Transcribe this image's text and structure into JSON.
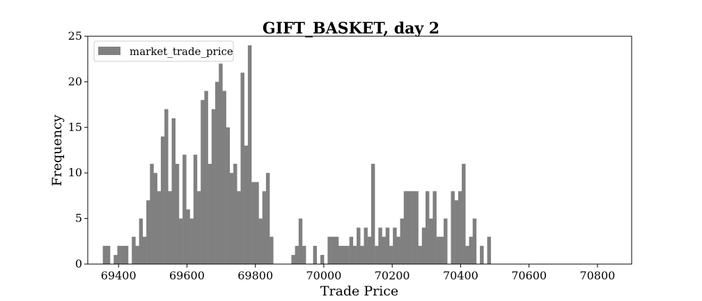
{
  "chart_data": {
    "type": "bar",
    "title": "GIFT_BASKET, day 2",
    "xlabel": "Trade Price",
    "ylabel": "Frequency",
    "xlim": [
      69310,
      70900
    ],
    "ylim": [
      0,
      25
    ],
    "xticks": [
      69400,
      69600,
      69800,
      70000,
      70200,
      70400,
      70600,
      70800
    ],
    "yticks": [
      0,
      5,
      10,
      15,
      20,
      25
    ],
    "grid": false,
    "legend_position": "top-left",
    "series": [
      {
        "name": "market_trade_price",
        "color": "#808080",
        "bin_start": 69354,
        "bin_width": 10.6,
        "counts": [
          2,
          2,
          0,
          1,
          2,
          2,
          2,
          0,
          3,
          2,
          5,
          3,
          7,
          11,
          10,
          8,
          14,
          17,
          8,
          16,
          11,
          5,
          12,
          6,
          5,
          12,
          8,
          18,
          19,
          11,
          17,
          20,
          22,
          19,
          15,
          10,
          11,
          8,
          21,
          13,
          24,
          9,
          9,
          5,
          8,
          10,
          3,
          0,
          0,
          0,
          0,
          0,
          1,
          2,
          5,
          2,
          0,
          0,
          2,
          0,
          1,
          0,
          3,
          3,
          3,
          2,
          2,
          2,
          3,
          2,
          4,
          2,
          4,
          3,
          11,
          2,
          4,
          3,
          4,
          2,
          4,
          3,
          5,
          8,
          8,
          8,
          8,
          2,
          4,
          8,
          5,
          8,
          3,
          3,
          5,
          0,
          8,
          7,
          8,
          11,
          2,
          3,
          5,
          0,
          2,
          0,
          3
        ]
      }
    ]
  }
}
